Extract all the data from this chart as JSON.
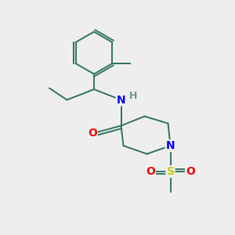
{
  "bg_color": "#eeeeee",
  "bond_color": "#3d7a6b",
  "bond_width": 1.5,
  "atom_colors": {
    "N": "#0000ff",
    "O": "#ff0000",
    "S": "#cccc00",
    "H": "#6a9a8a"
  },
  "font_size": 9
}
